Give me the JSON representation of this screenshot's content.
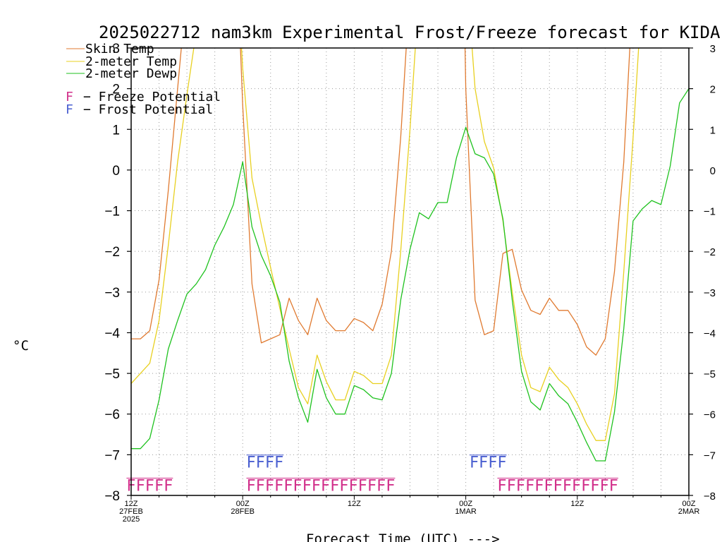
{
  "chart_data": {
    "type": "line",
    "title": "2025022712 nam3km Experimental Frost/Freeze forecast for KIDA",
    "xlabel": "Forecast Time (UTC) --->",
    "ylabel": "°C",
    "ylim": [
      -8,
      3
    ],
    "yticks": [
      3,
      2,
      1,
      0,
      -1,
      -2,
      -3,
      -4,
      -5,
      -6,
      -7,
      -8
    ],
    "ytick_labels": [
      "3",
      "2",
      "1",
      "0",
      "−1",
      "−2",
      "−3",
      "−4",
      "−5",
      "−6",
      "−7",
      "−8"
    ],
    "xlim": [
      0,
      60
    ],
    "xticks": [
      {
        "hour": 0,
        "lines": [
          "12Z",
          "27FEB",
          "2025"
        ]
      },
      {
        "hour": 12,
        "lines": [
          "00Z",
          "28FEB"
        ]
      },
      {
        "hour": 24,
        "lines": [
          "12Z"
        ]
      },
      {
        "hour": 36,
        "lines": [
          "00Z",
          "1MAR"
        ]
      },
      {
        "hour": 48,
        "lines": [
          "12Z"
        ]
      },
      {
        "hour": 60,
        "lines": [
          "00Z",
          "2MAR"
        ]
      }
    ],
    "grid": true,
    "legend_position": "top-left",
    "series": [
      {
        "name": "Skin Temp",
        "color": "#e07a30",
        "points": [
          [
            0,
            -4.15
          ],
          [
            1,
            -4.15
          ],
          [
            2,
            -3.95
          ],
          [
            3,
            -2.7
          ],
          [
            4,
            -0.5
          ],
          [
            5,
            2.0
          ],
          [
            6,
            4.5
          ],
          [
            11.5,
            4.5
          ],
          [
            12,
            1.6
          ],
          [
            13,
            -2.8
          ],
          [
            14,
            -4.25
          ],
          [
            15,
            -4.15
          ],
          [
            16,
            -4.05
          ],
          [
            17,
            -3.15
          ],
          [
            18,
            -3.7
          ],
          [
            19,
            -4.05
          ],
          [
            20,
            -3.15
          ],
          [
            21,
            -3.7
          ],
          [
            22,
            -3.95
          ],
          [
            23,
            -3.95
          ],
          [
            24,
            -3.65
          ],
          [
            25,
            -3.75
          ],
          [
            26,
            -3.95
          ],
          [
            27,
            -3.3
          ],
          [
            28,
            -2.0
          ],
          [
            29,
            0.8
          ],
          [
            30,
            4.5
          ],
          [
            35.8,
            4.5
          ],
          [
            36,
            2.0
          ],
          [
            37,
            -3.2
          ],
          [
            38,
            -4.05
          ],
          [
            39,
            -3.95
          ],
          [
            40,
            -2.05
          ],
          [
            41,
            -1.95
          ],
          [
            42,
            -2.95
          ],
          [
            43,
            -3.45
          ],
          [
            44,
            -3.55
          ],
          [
            45,
            -3.15
          ],
          [
            46,
            -3.45
          ],
          [
            47,
            -3.45
          ],
          [
            48,
            -3.8
          ],
          [
            49,
            -4.35
          ],
          [
            50,
            -4.55
          ],
          [
            51,
            -4.15
          ],
          [
            52,
            -2.5
          ],
          [
            53,
            0.2
          ],
          [
            54,
            4.5
          ]
        ]
      },
      {
        "name": "2-meter Temp",
        "color": "#e8d020",
        "points": [
          [
            0,
            -5.25
          ],
          [
            1,
            -5.0
          ],
          [
            2,
            -4.75
          ],
          [
            3,
            -3.7
          ],
          [
            4,
            -1.85
          ],
          [
            5,
            0.2
          ],
          [
            6,
            1.85
          ],
          [
            7,
            3.4
          ],
          [
            8,
            4.5
          ],
          [
            11.5,
            4.5
          ],
          [
            12,
            2.5
          ],
          [
            13,
            -0.2
          ],
          [
            14,
            -1.35
          ],
          [
            15,
            -2.4
          ],
          [
            16,
            -3.4
          ],
          [
            17,
            -4.4
          ],
          [
            18,
            -5.35
          ],
          [
            19,
            -5.75
          ],
          [
            20,
            -4.55
          ],
          [
            21,
            -5.2
          ],
          [
            22,
            -5.65
          ],
          [
            23,
            -5.65
          ],
          [
            24,
            -4.95
          ],
          [
            25,
            -5.05
          ],
          [
            26,
            -5.25
          ],
          [
            27,
            -5.25
          ],
          [
            28,
            -4.55
          ],
          [
            29,
            -2.0
          ],
          [
            30,
            1.0
          ],
          [
            31,
            4.5
          ],
          [
            36.2,
            4.5
          ],
          [
            37,
            2.0
          ],
          [
            38,
            0.7
          ],
          [
            39,
            0.05
          ],
          [
            40,
            -1.25
          ],
          [
            41,
            -3.0
          ],
          [
            42,
            -4.55
          ],
          [
            43,
            -5.35
          ],
          [
            44,
            -5.45
          ],
          [
            45,
            -4.85
          ],
          [
            46,
            -5.15
          ],
          [
            47,
            -5.35
          ],
          [
            48,
            -5.75
          ],
          [
            49,
            -6.25
          ],
          [
            50,
            -6.65
          ],
          [
            51,
            -6.65
          ],
          [
            52,
            -5.5
          ],
          [
            53,
            -2.5
          ],
          [
            54,
            0.8
          ],
          [
            55,
            4.5
          ]
        ]
      },
      {
        "name": "2-meter Dewp",
        "color": "#1fc21f",
        "points": [
          [
            0,
            -6.85
          ],
          [
            1,
            -6.85
          ],
          [
            2,
            -6.6
          ],
          [
            3,
            -5.65
          ],
          [
            4,
            -4.4
          ],
          [
            5,
            -3.7
          ],
          [
            6,
            -3.05
          ],
          [
            7,
            -2.8
          ],
          [
            8,
            -2.45
          ],
          [
            9,
            -1.85
          ],
          [
            10,
            -1.4
          ],
          [
            11,
            -0.85
          ],
          [
            12,
            0.2
          ],
          [
            13,
            -1.4
          ],
          [
            14,
            -2.1
          ],
          [
            15,
            -2.6
          ],
          [
            16,
            -3.25
          ],
          [
            17,
            -4.7
          ],
          [
            18,
            -5.6
          ],
          [
            19,
            -6.2
          ],
          [
            20,
            -4.9
          ],
          [
            21,
            -5.6
          ],
          [
            22,
            -6.0
          ],
          [
            23,
            -6.0
          ],
          [
            24,
            -5.3
          ],
          [
            25,
            -5.4
          ],
          [
            26,
            -5.6
          ],
          [
            27,
            -5.65
          ],
          [
            28,
            -5.0
          ],
          [
            29,
            -3.2
          ],
          [
            30,
            -1.95
          ],
          [
            31,
            -1.05
          ],
          [
            32,
            -1.2
          ],
          [
            33,
            -0.8
          ],
          [
            34,
            -0.8
          ],
          [
            35,
            0.3
          ],
          [
            36,
            1.05
          ],
          [
            37,
            0.4
          ],
          [
            38,
            0.3
          ],
          [
            39,
            -0.1
          ],
          [
            40,
            -1.2
          ],
          [
            41,
            -3.2
          ],
          [
            42,
            -4.95
          ],
          [
            43,
            -5.7
          ],
          [
            44,
            -5.9
          ],
          [
            45,
            -5.25
          ],
          [
            46,
            -5.55
          ],
          [
            47,
            -5.75
          ],
          [
            48,
            -6.2
          ],
          [
            49,
            -6.7
          ],
          [
            50,
            -7.15
          ],
          [
            51,
            -7.15
          ],
          [
            52,
            -5.95
          ],
          [
            53,
            -3.9
          ],
          [
            54,
            -1.25
          ],
          [
            55,
            -0.95
          ],
          [
            56,
            -0.75
          ],
          [
            57,
            -0.85
          ],
          [
            58,
            0.1
          ],
          [
            59,
            1.65
          ],
          [
            60,
            2.0
          ]
        ]
      }
    ],
    "frost_flags": [
      {
        "start": 12.4,
        "end": 16.4,
        "text": "FFFF"
      },
      {
        "start": 36.4,
        "end": 40.4,
        "text": "FFFF"
      }
    ],
    "freeze_flags": [
      {
        "start": -0.5,
        "end": 4.5,
        "text": "FFFFF"
      },
      {
        "start": 12.4,
        "end": 28.4,
        "text": "FFFFFFFFFFFFFFFF"
      },
      {
        "start": 39.4,
        "end": 52.4,
        "text": "FFFFFFFFFFFFF"
      }
    ],
    "legend": {
      "freeze_marker": "F",
      "freeze_label": "− Freeze Potential",
      "frost_marker": "F",
      "frost_label": "− Frost Potential",
      "freeze_color": "#d12f8a",
      "frost_color": "#4a5fd0"
    }
  }
}
